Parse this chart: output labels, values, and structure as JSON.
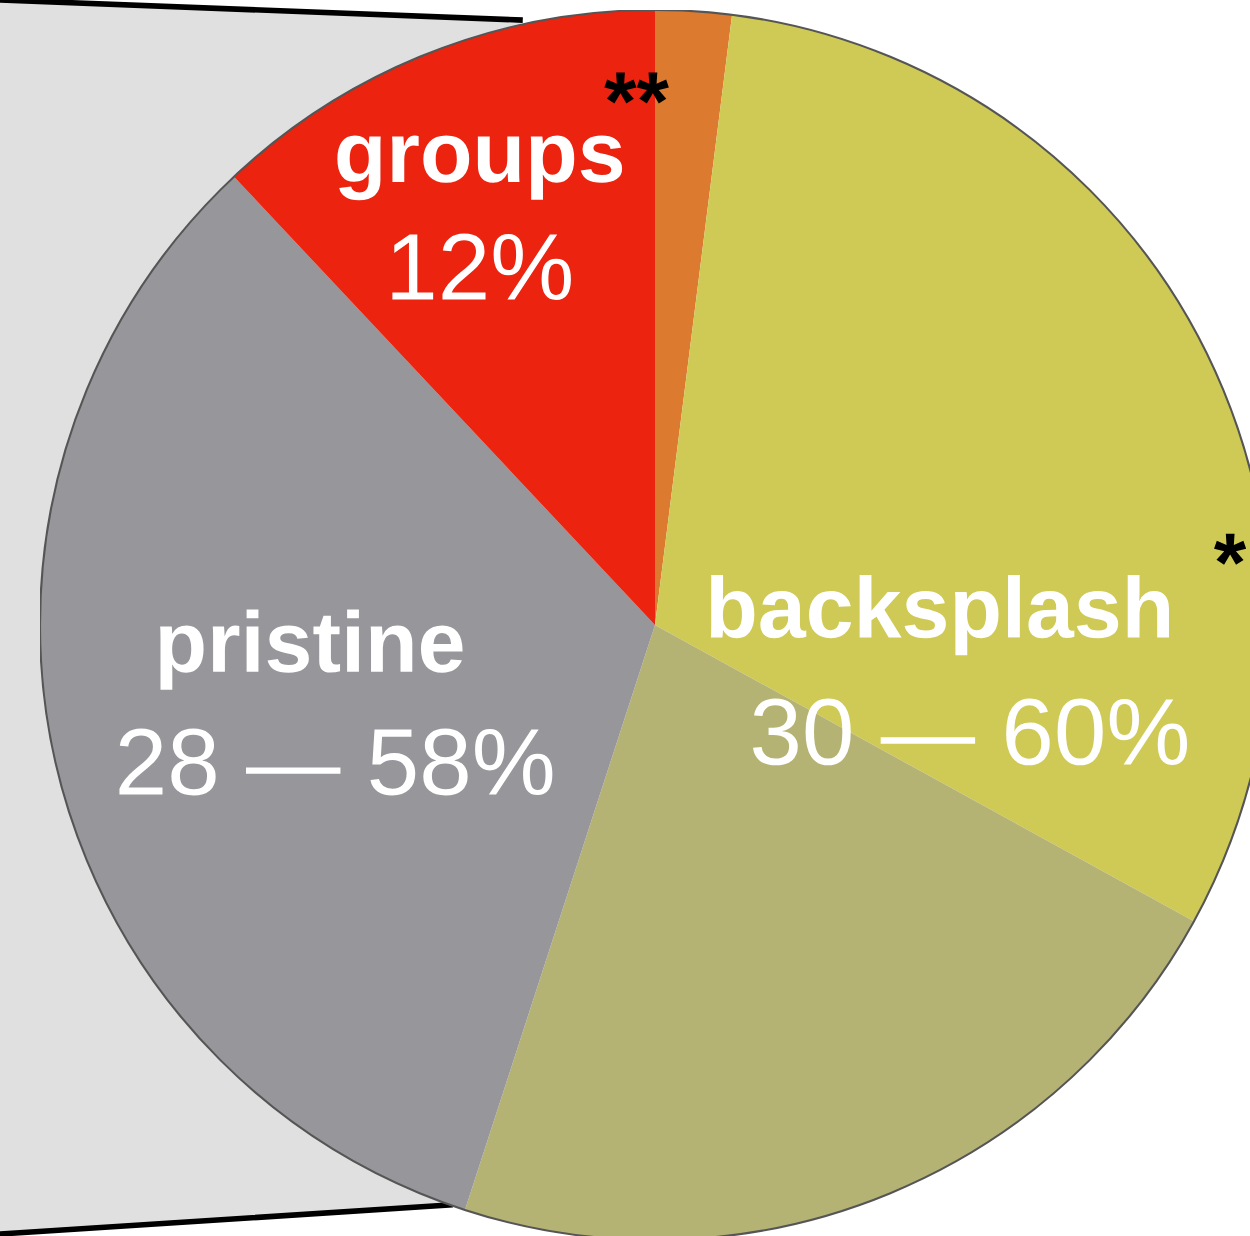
{
  "chart_data": {
    "type": "pie",
    "categories": [
      null,
      "backsplash",
      null,
      "pristine",
      "groups"
    ],
    "values": [
      2,
      31,
      22,
      33,
      12
    ],
    "colors": [
      "#dc7a30",
      "#cfca55",
      "#b5b374",
      "#97969b",
      "#ec230f"
    ],
    "value_labels": [
      null,
      null,
      null,
      null,
      "12%"
    ],
    "annotations": [
      "**",
      "*",
      "30 — 60%",
      "28 — 58%"
    ],
    "legend": false
  }
}
